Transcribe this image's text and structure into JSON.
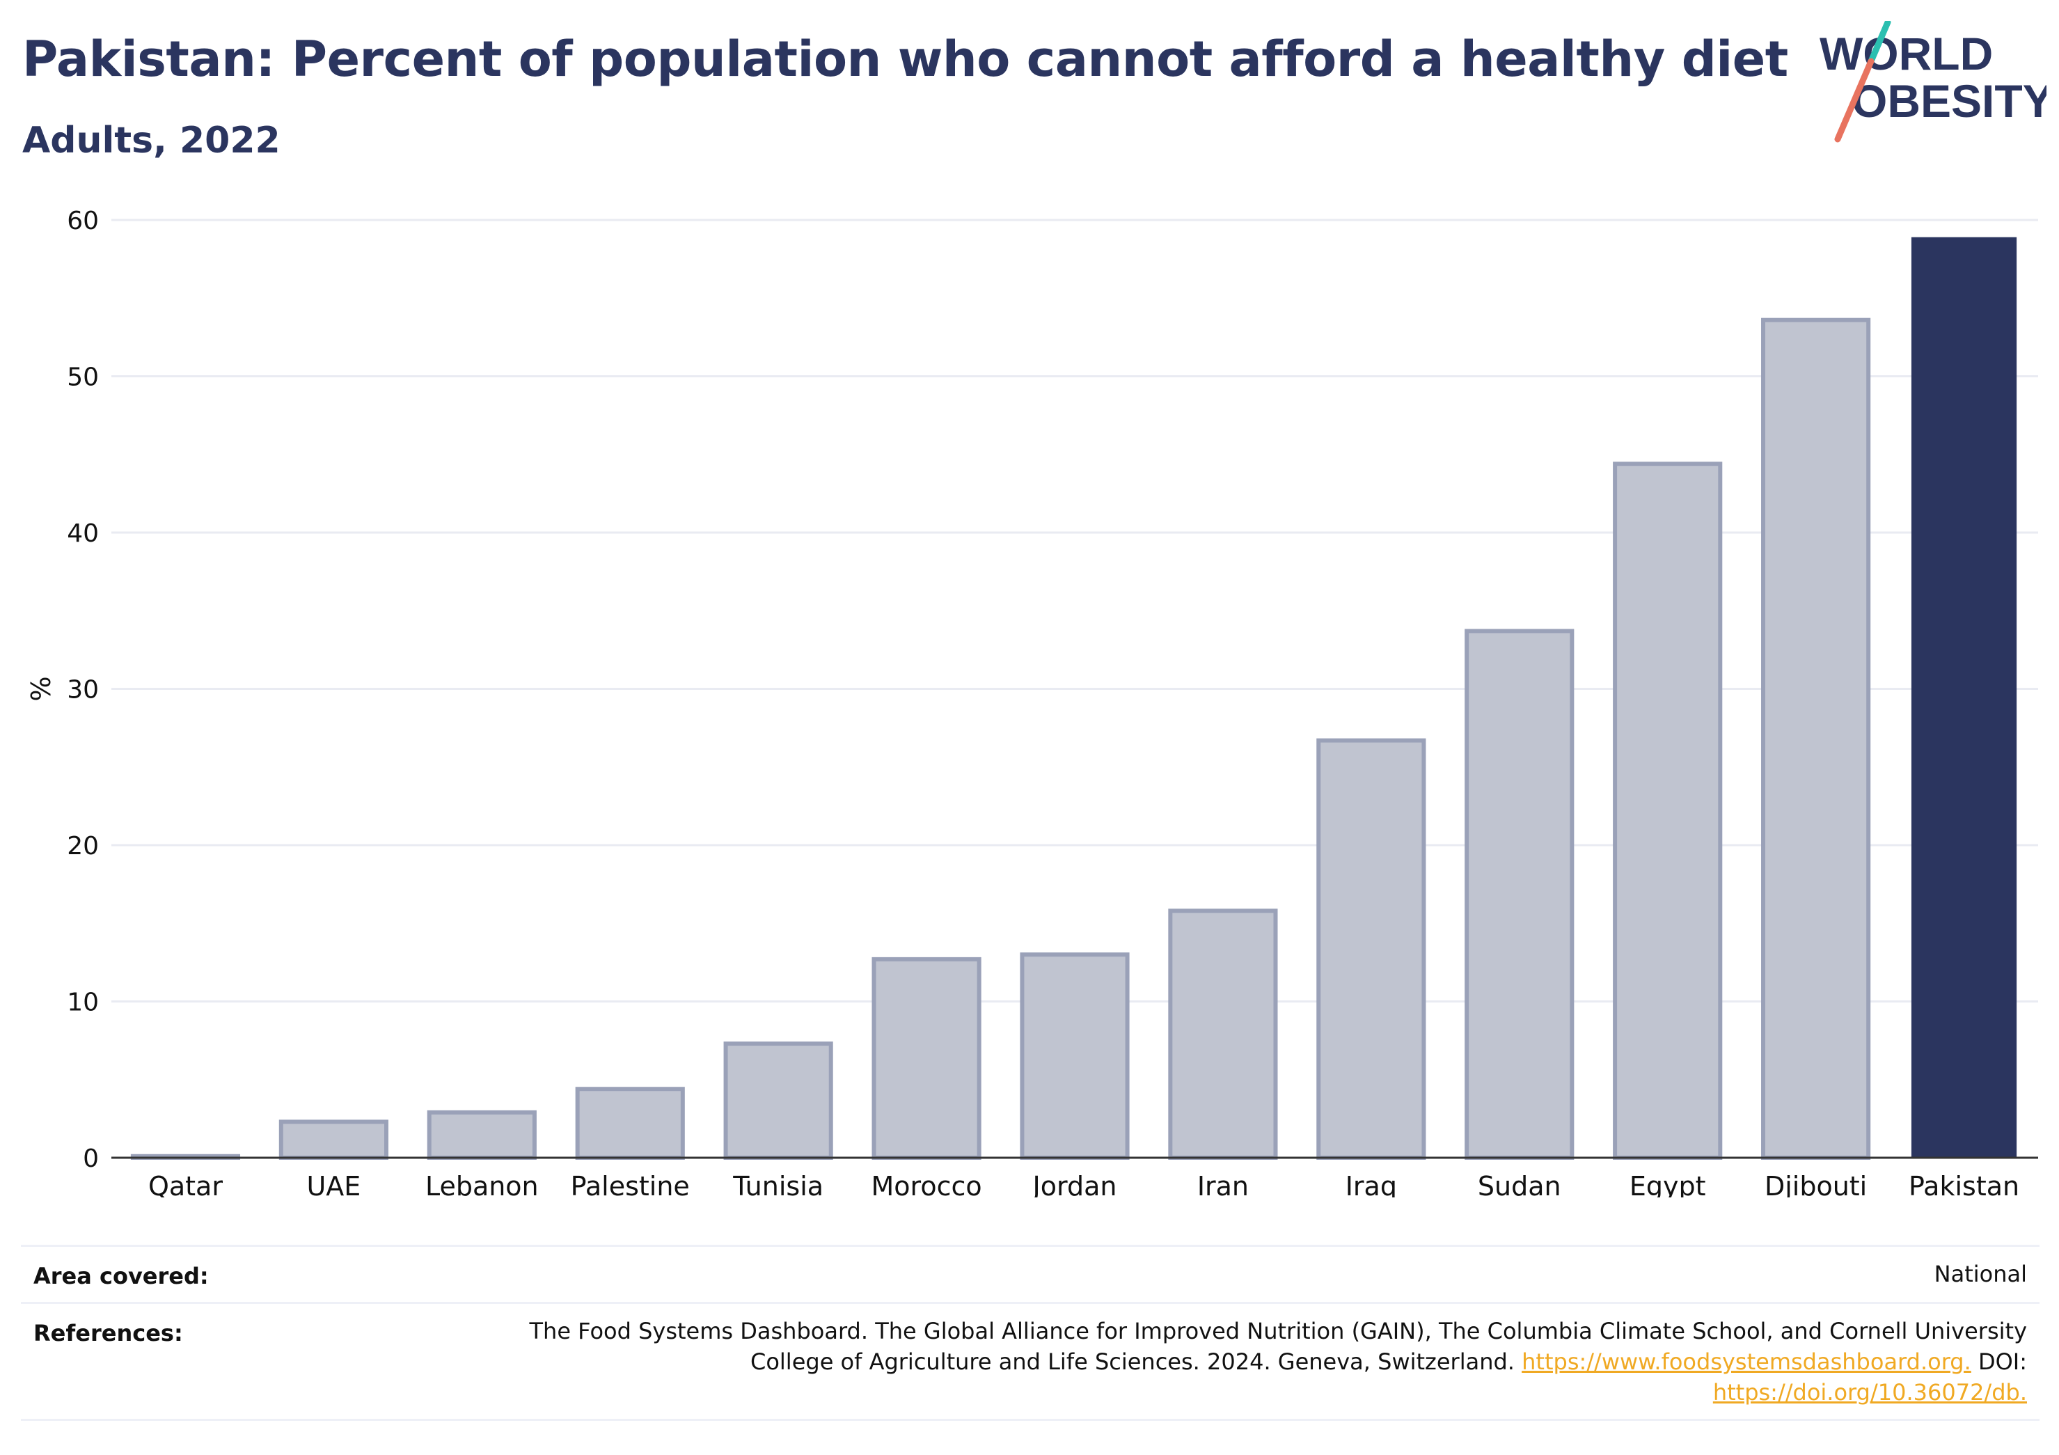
{
  "header": {
    "title": "Pakistan: Percent of population who cannot afford a healthy diet",
    "subtitle": "Adults, 2022"
  },
  "logo": {
    "line1": "WORLD",
    "line2": "OBESITY"
  },
  "chart_data": {
    "type": "bar",
    "title": "Pakistan: Percent of population who cannot afford a healthy diet",
    "subtitle": "Adults, 2022",
    "ylabel": "%",
    "xlabel": "",
    "ylim": [
      0,
      60
    ],
    "yticks": [
      0,
      10,
      20,
      30,
      40,
      50,
      60
    ],
    "grid": true,
    "categories": [
      "Qatar",
      "UAE",
      "Lebanon",
      "Palestine",
      "Tunisia",
      "Morocco",
      "Jordan",
      "Iran",
      "Iraq",
      "Sudan",
      "Egypt",
      "Djibouti",
      "Pakistan"
    ],
    "values": [
      0.1,
      2.3,
      2.9,
      4.4,
      7.3,
      12.7,
      13.0,
      15.8,
      26.7,
      33.7,
      44.4,
      53.6,
      58.9
    ],
    "highlight": "Pakistan",
    "colors": {
      "highlight": "#2b355f",
      "others_fill": "#c0c4d0",
      "others_stroke": "#9aa1b8",
      "grid": "#e9ebf2",
      "axis": "#333333"
    }
  },
  "info": {
    "area_label": "Area covered:",
    "area_value": "National",
    "references_label": "References:",
    "references_line1": "The Food Systems Dashboard. The Global Alliance for Improved Nutrition (GAIN), The Columbia Climate School, and Cornell University",
    "references_line2": "College of Agriculture and Life Sciences. 2024. Geneva, Switzerland.",
    "references_link1": "https://www.foodsystemsdashboard.org.",
    "references_doi": "DOI:",
    "references_link2": "https://doi.org/10.36072/db."
  }
}
